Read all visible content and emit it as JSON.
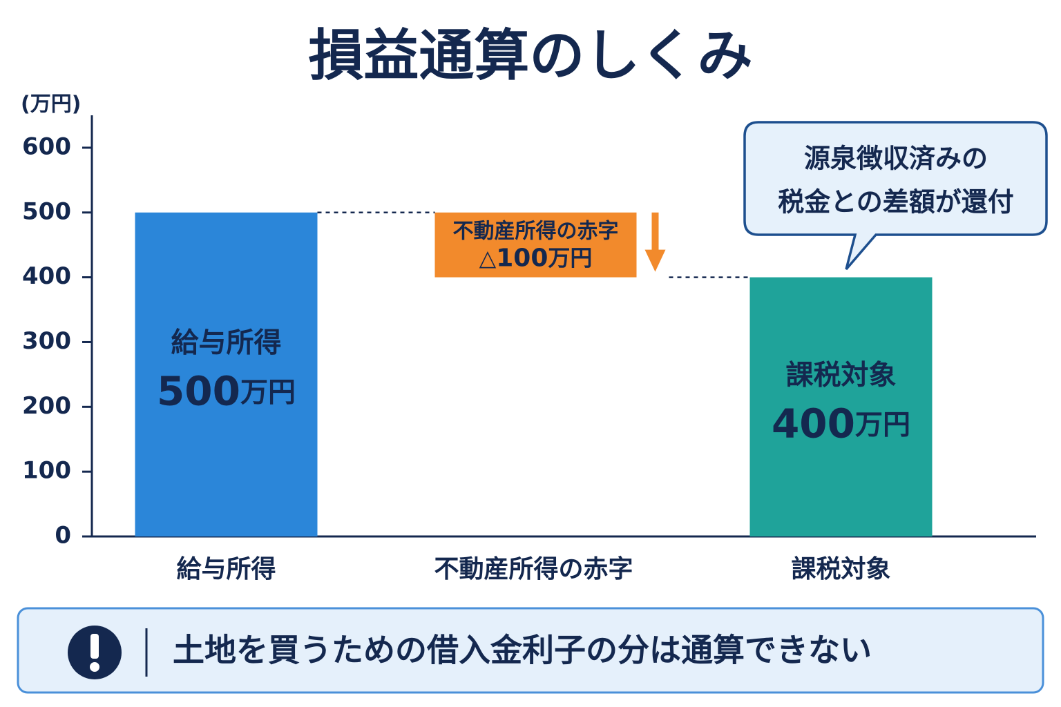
{
  "chart_data": {
    "type": "waterfall",
    "title": "損益通算のしくみ",
    "y_unit": "(万円)",
    "categories": [
      "給与所得",
      "不動産所得の赤字",
      "課税対象"
    ],
    "values": [
      500,
      -100,
      400
    ],
    "value_labels": [
      "500万円",
      "△100万円",
      "400万円"
    ],
    "colors": [
      "#2b86d9",
      "#f28a2c",
      "#1fa39a"
    ],
    "ylim": [
      0,
      650
    ],
    "yticks": [
      0,
      100,
      200,
      300,
      400,
      500,
      600
    ],
    "annotation": [
      "源泉徴収済みの",
      "税金との差額が還付"
    ],
    "note": "土地を買うための借入金利子の分は通算できない"
  }
}
